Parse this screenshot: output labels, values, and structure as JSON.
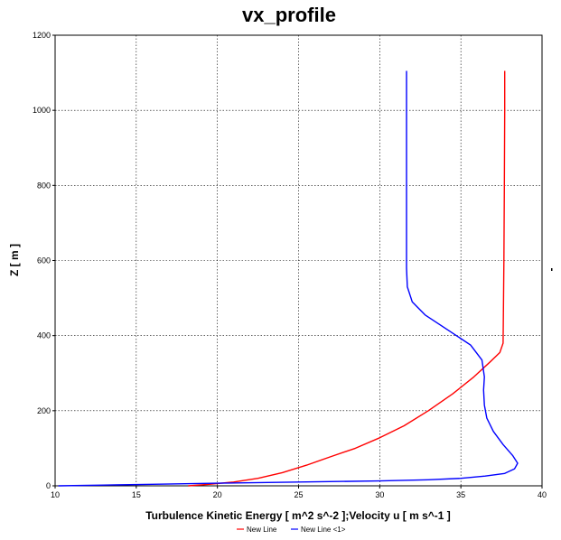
{
  "chart_data": {
    "type": "line",
    "title": "vx_profile",
    "xlabel": "Turbulence Kinetic Energy [ m^2 s^-2 ];Velocity u [ m s^-1 ]",
    "ylabel": "Z [ m ]",
    "xlim": [
      10,
      40
    ],
    "ylim": [
      0,
      1200
    ],
    "xticks": [
      10,
      15,
      20,
      25,
      30,
      35,
      40
    ],
    "yticks": [
      0,
      200,
      400,
      600,
      800,
      1000,
      1200
    ],
    "grid": true,
    "legend_position": "bottom-center",
    "series": [
      {
        "name": "New Line",
        "color": "#ff0000",
        "points": [
          [
            18.2,
            0
          ],
          [
            19.5,
            4
          ],
          [
            21,
            10
          ],
          [
            22.5,
            20
          ],
          [
            24,
            35
          ],
          [
            25.5,
            55
          ],
          [
            27,
            78
          ],
          [
            28.5,
            100
          ],
          [
            30,
            128
          ],
          [
            31.5,
            160
          ],
          [
            33,
            200
          ],
          [
            34.5,
            245
          ],
          [
            35.8,
            290
          ],
          [
            36.8,
            330
          ],
          [
            37.4,
            355
          ],
          [
            37.6,
            380
          ],
          [
            37.62,
            450
          ],
          [
            37.65,
            600
          ],
          [
            37.68,
            800
          ],
          [
            37.7,
            1000
          ],
          [
            37.7,
            1105
          ]
        ]
      },
      {
        "name": "New Line <1>",
        "color": "#0000ff",
        "points": [
          [
            10.2,
            0
          ],
          [
            13,
            2
          ],
          [
            16,
            4
          ],
          [
            20,
            7
          ],
          [
            25,
            10
          ],
          [
            30,
            13
          ],
          [
            33,
            16
          ],
          [
            35,
            20
          ],
          [
            36.5,
            26
          ],
          [
            37.7,
            33
          ],
          [
            38.3,
            45
          ],
          [
            38.5,
            60
          ],
          [
            38.2,
            80
          ],
          [
            37.6,
            110
          ],
          [
            37,
            145
          ],
          [
            36.6,
            180
          ],
          [
            36.45,
            215
          ],
          [
            36.4,
            255
          ],
          [
            36.45,
            290
          ],
          [
            36.3,
            335
          ],
          [
            35.6,
            375
          ],
          [
            34.2,
            415
          ],
          [
            32.8,
            455
          ],
          [
            32,
            490
          ],
          [
            31.7,
            530
          ],
          [
            31.65,
            580
          ],
          [
            31.65,
            700
          ],
          [
            31.65,
            900
          ],
          [
            31.65,
            1105
          ]
        ]
      }
    ]
  }
}
